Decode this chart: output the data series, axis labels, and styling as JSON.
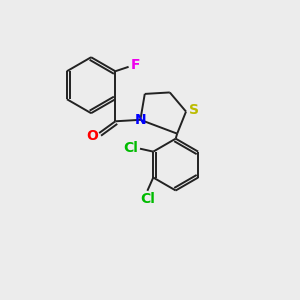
{
  "background_color": "#ececec",
  "atoms": {
    "F": {
      "color": "#ee00ee",
      "fontsize": 10
    },
    "N": {
      "color": "#0000ff",
      "fontsize": 10
    },
    "S": {
      "color": "#bbbb00",
      "fontsize": 10
    },
    "O": {
      "color": "#ff0000",
      "fontsize": 10
    },
    "Cl": {
      "color": "#00bb00",
      "fontsize": 10
    }
  },
  "bond_color": "#222222",
  "bond_lw": 1.4
}
